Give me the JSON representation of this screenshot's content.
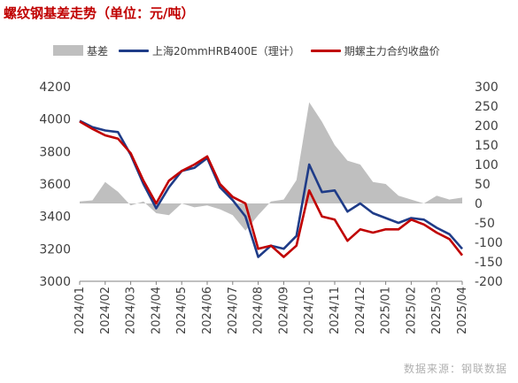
{
  "chart_data": {
    "type": "line",
    "title": "螺纹钢基差走势（单位：元/吨）",
    "xlabel": "",
    "ylabel": "",
    "x_ticks": [
      "2024/01",
      "2024/02",
      "2024/03",
      "2024/04",
      "2024/05",
      "2024/06",
      "2024/07",
      "2024/08",
      "2024/09",
      "2024/10",
      "2024/11",
      "2024/12",
      "2025/01",
      "2025/02",
      "2025/03",
      "2025/04"
    ],
    "y_left": {
      "lim": [
        3000,
        4200
      ],
      "ticks": [
        3000,
        3200,
        3400,
        3600,
        3800,
        4000,
        4200
      ]
    },
    "y_right": {
      "lim": [
        -200,
        300
      ],
      "ticks": [
        -200,
        -150,
        -100,
        -50,
        0,
        50,
        100,
        150,
        200,
        250,
        300
      ]
    },
    "grid": false,
    "legend_position": "top",
    "series": [
      {
        "name": "基差",
        "type": "area",
        "axis": "right",
        "color": "#bfbfbf",
        "x": [
          "2024/01",
          "2024/01.5",
          "2024/02",
          "2024/02.5",
          "2024/03",
          "2024/03.5",
          "2024/04",
          "2024/04.5",
          "2024/05",
          "2024/05.5",
          "2024/06",
          "2024/06.5",
          "2024/07",
          "2024/07.5",
          "2024/08",
          "2024/08.5",
          "2024/09",
          "2024/09.5",
          "2024/10",
          "2024/10.5",
          "2024/11",
          "2024/11.5",
          "2024/12",
          "2024/12.5",
          "2025/01",
          "2025/01.5",
          "2025/02",
          "2025/02.5",
          "2025/03",
          "2025/03.5",
          "2025/04"
        ],
        "values": [
          5,
          8,
          55,
          30,
          -5,
          5,
          -25,
          -30,
          0,
          -10,
          -5,
          -15,
          -30,
          -70,
          -30,
          5,
          10,
          60,
          260,
          210,
          150,
          110,
          100,
          55,
          50,
          20,
          10,
          0,
          20,
          10,
          15
        ]
      },
      {
        "name": "上海20mmHRB400E（理计）",
        "type": "line",
        "axis": "left",
        "color": "#1f3c88",
        "x": [
          "2024/01",
          "2024/01.5",
          "2024/02",
          "2024/02.5",
          "2024/03",
          "2024/03.5",
          "2024/04",
          "2024/04.5",
          "2024/05",
          "2024/05.5",
          "2024/06",
          "2024/06.5",
          "2024/07",
          "2024/07.5",
          "2024/08",
          "2024/08.5",
          "2024/09",
          "2024/09.5",
          "2024/10",
          "2024/10.5",
          "2024/11",
          "2024/11.5",
          "2024/12",
          "2024/12.5",
          "2025/01",
          "2025/01.5",
          "2025/02",
          "2025/02.5",
          "2025/03",
          "2025/03.5",
          "2025/04"
        ],
        "values": [
          3990,
          3950,
          3930,
          3920,
          3780,
          3600,
          3450,
          3580,
          3680,
          3700,
          3760,
          3580,
          3500,
          3400,
          3150,
          3220,
          3200,
          3280,
          3720,
          3550,
          3560,
          3430,
          3480,
          3420,
          3390,
          3360,
          3390,
          3380,
          3330,
          3290,
          3200
        ]
      },
      {
        "name": "期螺主力合约收盘价",
        "type": "line",
        "axis": "left",
        "color": "#c00000",
        "x": [
          "2024/01",
          "2024/01.5",
          "2024/02",
          "2024/02.5",
          "2024/03",
          "2024/03.5",
          "2024/04",
          "2024/04.5",
          "2024/05",
          "2024/05.5",
          "2024/06",
          "2024/06.5",
          "2024/07",
          "2024/07.5",
          "2024/08",
          "2024/08.5",
          "2024/09",
          "2024/09.5",
          "2024/10",
          "2024/10.5",
          "2024/11",
          "2024/11.5",
          "2024/12",
          "2024/12.5",
          "2025/01",
          "2025/01.5",
          "2025/02",
          "2025/02.5",
          "2025/03",
          "2025/03.5",
          "2025/04"
        ],
        "values": [
          3985,
          3940,
          3900,
          3880,
          3790,
          3620,
          3480,
          3620,
          3680,
          3720,
          3770,
          3600,
          3520,
          3480,
          3200,
          3220,
          3150,
          3220,
          3560,
          3400,
          3380,
          3250,
          3320,
          3300,
          3320,
          3320,
          3380,
          3350,
          3300,
          3260,
          3160
        ]
      }
    ]
  },
  "source_note": "数据来源：钢联数据"
}
